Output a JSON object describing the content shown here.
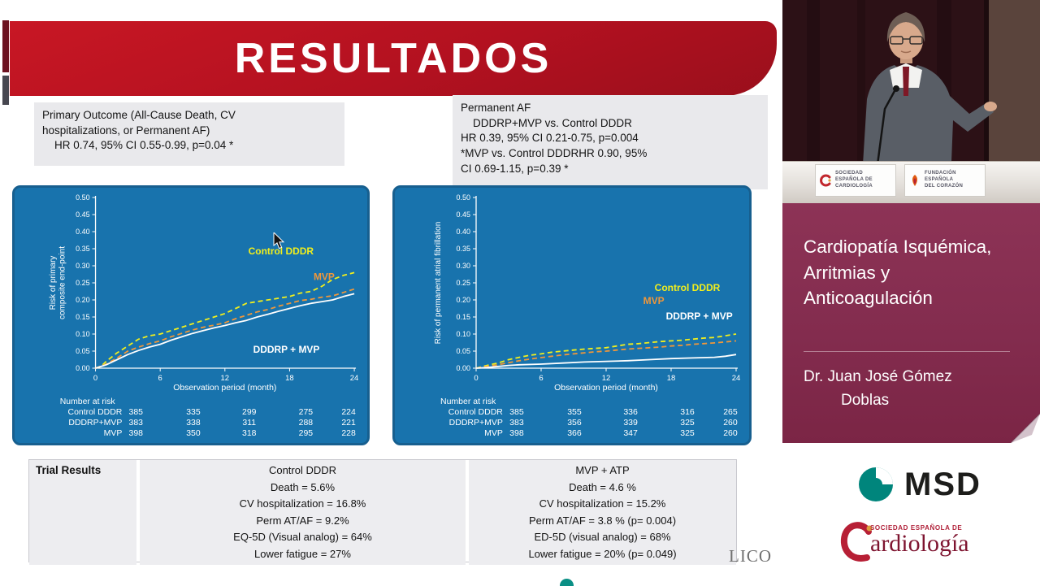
{
  "slide": {
    "title": "RESULTADOS",
    "stat_box_left_lines": [
      "Primary Outcome (All-Cause Death, CV",
      "hospitalizations, or Permanent AF)",
      "    HR 0.74, 95% CI 0.55-0.99, p=0.04 *"
    ],
    "stat_box_right_lines": [
      "Permanent AF",
      "    DDDRP+MVP vs. Control DDDR",
      "HR 0.39, 95% CI 0.21-0.75, p=0.004",
      "*MVP vs. Control DDDRHR 0.90, 95%",
      "CI 0.69-1.15, p=0.39 *"
    ],
    "watermark": "LICO"
  },
  "chart_data": [
    {
      "type": "line",
      "xlabel": "Observation period (month)",
      "ylabel": "Risk of primary composite end-point",
      "ylabel_lines": [
        "Risk of primary",
        "composite end-point"
      ],
      "xlim": [
        0,
        24
      ],
      "ylim": [
        0,
        0.5
      ],
      "xticks": [
        0,
        6,
        12,
        18,
        24
      ],
      "ytick_step": 0.05,
      "grid": false,
      "legend_position": "in-plot-labels",
      "series": [
        {
          "name": "Control DDDR",
          "color": "#f2ef1c",
          "dash": true,
          "label_x": 17.2,
          "label_y": 0.333,
          "points": [
            [
              0,
              0
            ],
            [
              0.5,
              0.005
            ],
            [
              1,
              0.02
            ],
            [
              2,
              0.045
            ],
            [
              3,
              0.065
            ],
            [
              4,
              0.085
            ],
            [
              5,
              0.095
            ],
            [
              6,
              0.1
            ],
            [
              7,
              0.11
            ],
            [
              8,
              0.12
            ],
            [
              9,
              0.13
            ],
            [
              10,
              0.14
            ],
            [
              11,
              0.15
            ],
            [
              12,
              0.16
            ],
            [
              13,
              0.175
            ],
            [
              14,
              0.19
            ],
            [
              15,
              0.195
            ],
            [
              16,
              0.2
            ],
            [
              17,
              0.205
            ],
            [
              18,
              0.21
            ],
            [
              19,
              0.22
            ],
            [
              20,
              0.225
            ],
            [
              21,
              0.24
            ],
            [
              22,
              0.26
            ],
            [
              23,
              0.272
            ],
            [
              24,
              0.28
            ]
          ]
        },
        {
          "name": "MVP",
          "color": "#f0973a",
          "dash": true,
          "label_x": 21.2,
          "label_y": 0.258,
          "points": [
            [
              0,
              0
            ],
            [
              1,
              0.012
            ],
            [
              2,
              0.03
            ],
            [
              3,
              0.05
            ],
            [
              4,
              0.062
            ],
            [
              5,
              0.072
            ],
            [
              6,
              0.08
            ],
            [
              7,
              0.092
            ],
            [
              8,
              0.102
            ],
            [
              9,
              0.112
            ],
            [
              10,
              0.12
            ],
            [
              11,
              0.126
            ],
            [
              12,
              0.133
            ],
            [
              13,
              0.145
            ],
            [
              14,
              0.155
            ],
            [
              15,
              0.165
            ],
            [
              16,
              0.172
            ],
            [
              17,
              0.182
            ],
            [
              18,
              0.19
            ],
            [
              19,
              0.198
            ],
            [
              20,
              0.202
            ],
            [
              21,
              0.208
            ],
            [
              22,
              0.212
            ],
            [
              23,
              0.222
            ],
            [
              24,
              0.232
            ]
          ]
        },
        {
          "name": "DDDRP + MVP",
          "color": "#ffffff",
          "dash": false,
          "label_x": 17.7,
          "label_y": 0.045,
          "points": [
            [
              0,
              0
            ],
            [
              1,
              0.01
            ],
            [
              2,
              0.025
            ],
            [
              3,
              0.04
            ],
            [
              4,
              0.052
            ],
            [
              5,
              0.062
            ],
            [
              6,
              0.07
            ],
            [
              7,
              0.082
            ],
            [
              8,
              0.092
            ],
            [
              9,
              0.102
            ],
            [
              10,
              0.11
            ],
            [
              11,
              0.118
            ],
            [
              12,
              0.125
            ],
            [
              13,
              0.133
            ],
            [
              14,
              0.14
            ],
            [
              15,
              0.15
            ],
            [
              16,
              0.158
            ],
            [
              17,
              0.167
            ],
            [
              18,
              0.175
            ],
            [
              19,
              0.183
            ],
            [
              20,
              0.19
            ],
            [
              21,
              0.195
            ],
            [
              22,
              0.2
            ],
            [
              23,
              0.21
            ],
            [
              24,
              0.218
            ]
          ]
        }
      ],
      "number_at_risk": {
        "header": "Number at risk",
        "rows": [
          {
            "label": "Control DDDR",
            "values": [
              385,
              335,
              299,
              275,
              224
            ]
          },
          {
            "label": "DDDRP+MVP",
            "values": [
              383,
              338,
              311,
              288,
              221
            ]
          },
          {
            "label": "MVP",
            "values": [
              398,
              350,
              318,
              295,
              228
            ]
          }
        ]
      }
    },
    {
      "type": "line",
      "xlabel": "Observation period (month)",
      "ylabel": "Risk of permanent atrial fibrillation",
      "ylabel_lines": [
        "Risk of permanent atrial fibrillation"
      ],
      "xlim": [
        0,
        24
      ],
      "ylim": [
        0,
        0.5
      ],
      "xticks": [
        0,
        6,
        12,
        18,
        24
      ],
      "ytick_step": 0.05,
      "grid": false,
      "legend_position": "in-plot-labels",
      "series": [
        {
          "name": "Control DDDR",
          "color": "#f2ef1c",
          "dash": true,
          "label_x": 19.5,
          "label_y": 0.226,
          "points": [
            [
              0,
              0
            ],
            [
              1,
              0.008
            ],
            [
              2,
              0.015
            ],
            [
              3,
              0.025
            ],
            [
              4,
              0.032
            ],
            [
              5,
              0.038
            ],
            [
              6,
              0.042
            ],
            [
              7,
              0.047
            ],
            [
              8,
              0.05
            ],
            [
              9,
              0.053
            ],
            [
              10,
              0.056
            ],
            [
              11,
              0.058
            ],
            [
              12,
              0.06
            ],
            [
              13,
              0.065
            ],
            [
              14,
              0.07
            ],
            [
              15,
              0.072
            ],
            [
              16,
              0.075
            ],
            [
              17,
              0.078
            ],
            [
              18,
              0.08
            ],
            [
              19,
              0.082
            ],
            [
              20,
              0.085
            ],
            [
              21,
              0.088
            ],
            [
              22,
              0.09
            ],
            [
              23,
              0.095
            ],
            [
              24,
              0.1
            ]
          ]
        },
        {
          "name": "MVP",
          "color": "#f0973a",
          "dash": true,
          "label_x": 16.4,
          "label_y": 0.188,
          "points": [
            [
              0,
              0
            ],
            [
              1,
              0.005
            ],
            [
              2,
              0.01
            ],
            [
              3,
              0.016
            ],
            [
              4,
              0.022
            ],
            [
              5,
              0.027
            ],
            [
              6,
              0.031
            ],
            [
              7,
              0.035
            ],
            [
              8,
              0.039
            ],
            [
              9,
              0.042
            ],
            [
              10,
              0.045
            ],
            [
              11,
              0.048
            ],
            [
              12,
              0.05
            ],
            [
              13,
              0.053
            ],
            [
              14,
              0.056
            ],
            [
              15,
              0.058
            ],
            [
              16,
              0.06
            ],
            [
              17,
              0.062
            ],
            [
              18,
              0.065
            ],
            [
              19,
              0.067
            ],
            [
              20,
              0.07
            ],
            [
              21,
              0.072
            ],
            [
              22,
              0.074
            ],
            [
              23,
              0.077
            ],
            [
              24,
              0.08
            ]
          ]
        },
        {
          "name": "DDDRP + MVP",
          "color": "#ffffff",
          "dash": false,
          "label_x": 20.6,
          "label_y": 0.143,
          "points": [
            [
              0,
              0
            ],
            [
              1,
              0.002
            ],
            [
              2,
              0.005
            ],
            [
              3,
              0.008
            ],
            [
              4,
              0.01
            ],
            [
              6,
              0.012
            ],
            [
              8,
              0.015
            ],
            [
              10,
              0.018
            ],
            [
              12,
              0.02
            ],
            [
              14,
              0.022
            ],
            [
              16,
              0.025
            ],
            [
              18,
              0.028
            ],
            [
              20,
              0.03
            ],
            [
              22,
              0.032
            ],
            [
              23,
              0.035
            ],
            [
              24,
              0.04
            ]
          ]
        }
      ],
      "number_at_risk": {
        "header": "Number at risk",
        "rows": [
          {
            "label": "Control DDDR",
            "values": [
              385,
              355,
              336,
              316,
              265
            ]
          },
          {
            "label": "DDDRP+MVP",
            "values": [
              383,
              356,
              339,
              325,
              260
            ]
          },
          {
            "label": "MVP",
            "values": [
              398,
              366,
              347,
              325,
              260
            ]
          }
        ]
      }
    }
  ],
  "results_table": {
    "header": "Trial Results",
    "control": {
      "title": "Control DDDR",
      "rows": [
        "Death = 5.6%",
        "CV hospitalization = 16.8%",
        "Perm AT/AF = 9.2%",
        "EQ-5D (Visual analog) = 64%",
        "Lower fatigue = 27%"
      ]
    },
    "mvp": {
      "title": "MVP + ATP",
      "rows": [
        "Death = 4.6 %",
        "CV hospitalization = 15.2%",
        "Perm AT/AF = 3.8 % (p= 0.004)",
        "ED-5D (visual analog) = 68%",
        "Lower fatigue = 20% (p= 0.049)"
      ]
    }
  },
  "sidebar": {
    "video": {
      "desk_cards": [
        {
          "icon": "sec-heart-icon",
          "lines": [
            "SOCIEDAD",
            "ESPAÑOLA DE",
            "CARDIOLOGÍA"
          ]
        },
        {
          "icon": "fec-heart-icon",
          "lines": [
            "FUNDACIÓN",
            "ESPAÑOLA",
            "DEL CORAZÓN"
          ]
        }
      ]
    },
    "title_panel": {
      "title": "Cardiopatía Isquémica, Arritmias y Anticoagulación",
      "speaker_lines": [
        "Dr. Juan José Gómez",
        "Doblas"
      ]
    },
    "logos_panel": {
      "msd_label": "MSD",
      "sec_small": "SOCIEDAD ESPAÑOLA DE",
      "sec_name": "Cardiología",
      "sec_name_rest": "ardiología"
    }
  },
  "colors": {
    "banner_red": "#b31120",
    "chart_blue": "#1873ad",
    "series_yellow": "#f2ef1c",
    "series_orange": "#f0973a",
    "series_white": "#ffffff",
    "panel_maroon": "#832c4e",
    "msd_teal": "#00857c",
    "sec_red": "#b71f35"
  }
}
